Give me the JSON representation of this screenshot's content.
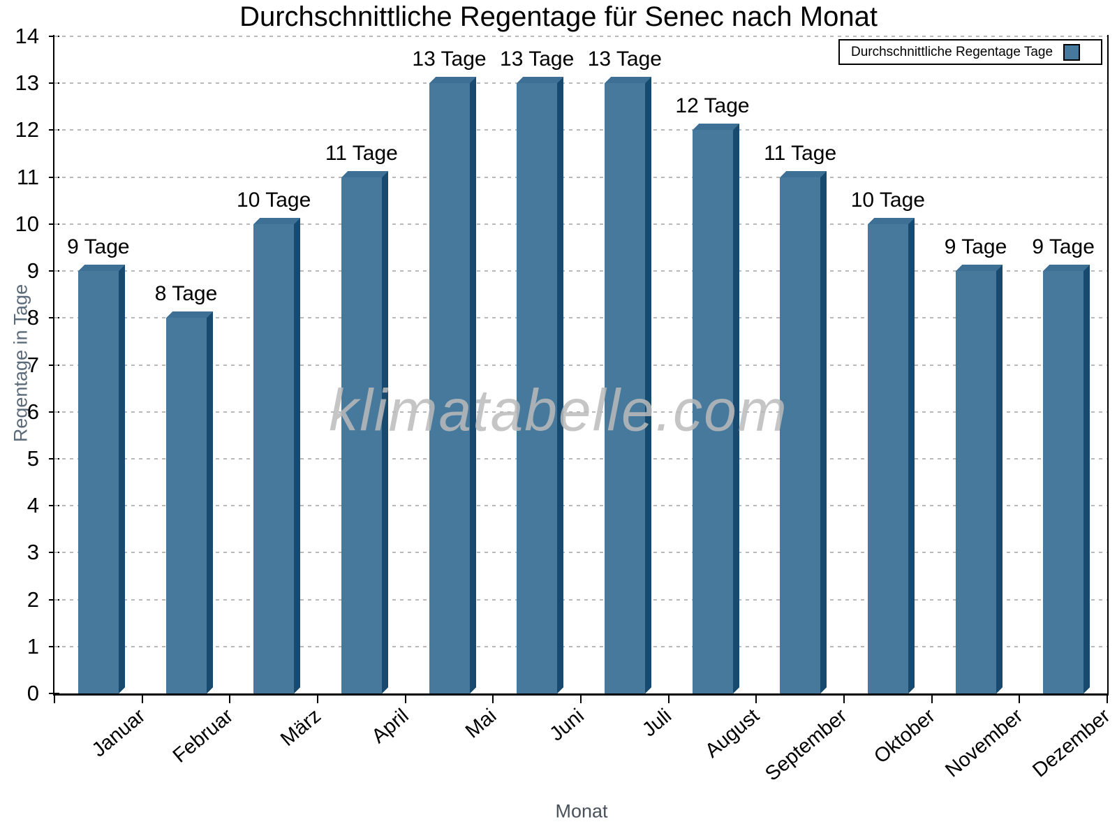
{
  "title": "Durchschnittliche Regentage für Senec nach Monat",
  "legend": {
    "label": "Durchschnittliche Regentage Tage"
  },
  "watermark": "klimatabelle.com",
  "xlabel": "Monat",
  "ylabel": "Regentage in Tage",
  "colors": {
    "bar_face": "#46799B",
    "bar_side": "#174A6E",
    "bar_top": "#3D7094",
    "grid": "#b9b9b9",
    "axis": "#000000",
    "watermark": "#bbbbbb",
    "ylabel_text": "#5a6a79",
    "xlabel_text": "#49525b",
    "tick_text": "#000000"
  },
  "chart_data": {
    "type": "bar",
    "title": "Durchschnittliche Regentage für Senec nach Monat",
    "xlabel": "Monat",
    "ylabel": "Regentage in Tage",
    "categories": [
      "Januar",
      "Februar",
      "März",
      "April",
      "Mai",
      "Juni",
      "Juli",
      "August",
      "September",
      "Oktober",
      "November",
      "Dezember"
    ],
    "values": [
      9,
      8,
      10,
      11,
      13,
      13,
      13,
      12,
      11,
      10,
      9,
      9
    ],
    "bar_labels": [
      "9 Tage",
      "8 Tage",
      "10 Tage",
      "11 Tage",
      "13 Tage",
      "13 Tage",
      "13 Tage",
      "12 Tage",
      "11 Tage",
      "10 Tage",
      "9 Tage",
      "9 Tage"
    ],
    "unit_suffix": "Tage",
    "series_name": "Durchschnittliche Regentage Tage",
    "ylim": [
      0,
      14
    ],
    "ytick_step": 1,
    "yticks": [
      0,
      1,
      2,
      3,
      4,
      5,
      6,
      7,
      8,
      9,
      10,
      11,
      12,
      13,
      14
    ],
    "grid": "horizontal-dotted",
    "legend_position": "top-right",
    "bar_color": "#46799B",
    "bar_side_color": "#174A6E",
    "bar_top_color": "#3D7094",
    "bar_effect": "3d-extruded"
  }
}
